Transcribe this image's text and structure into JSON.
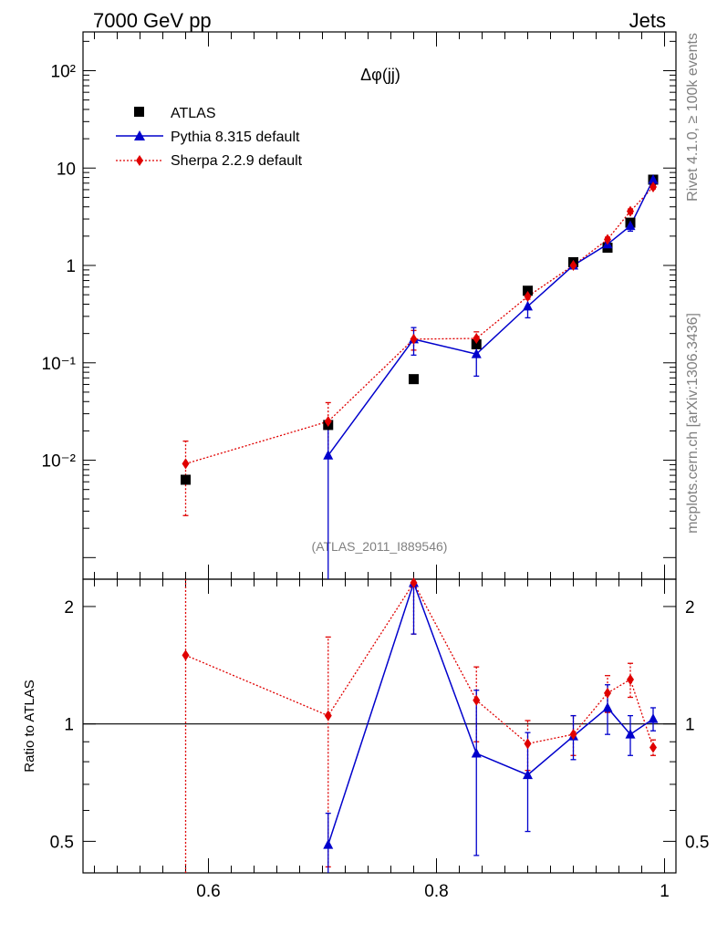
{
  "header": {
    "left": "7000 GeV pp",
    "right": "Jets"
  },
  "side_labels": {
    "top": "Rivet 4.1.0, ≥ 100k events",
    "bottom": "mcplots.cern.ch [arXiv:1306.3436]"
  },
  "analysis_tag": "(ATLAS_2011_I889546)",
  "colors": {
    "atlas": "#000000",
    "pythia": "#0000cc",
    "sherpa": "#e00000",
    "gray": "#808080"
  },
  "chart_data": [
    {
      "type": "scatter",
      "panel": "main",
      "title": "Δφ(jj)",
      "xlabel": "",
      "ylabel": "",
      "yscale": "log",
      "xlim": [
        0.49,
        1.01
      ],
      "ylim": [
        0.0006,
        250
      ],
      "y_tick_labels": [
        "10⁻²",
        "10⁻¹",
        "1",
        "10",
        "10²"
      ],
      "legend_position": "top-left",
      "series": [
        {
          "name": "ATLAS",
          "style": "markers",
          "x": [
            0.58,
            0.705,
            0.78,
            0.835,
            0.88,
            0.92,
            0.95,
            0.97,
            0.99
          ],
          "y": [
            0.0063,
            0.023,
            0.068,
            0.155,
            0.55,
            1.08,
            1.52,
            2.75,
            7.6
          ]
        },
        {
          "name": "Pythia 8.315 default",
          "style": "line-triangles",
          "x": [
            0.705,
            0.78,
            0.835,
            0.88,
            0.92,
            0.95,
            0.97,
            0.99
          ],
          "y": [
            0.0112,
            0.175,
            0.123,
            0.38,
            1.0,
            1.65,
            2.55,
            7.6
          ],
          "err_lo": [
            0.0112,
            0.055,
            0.05,
            0.09,
            0.06,
            0.08,
            0.3,
            0.4
          ],
          "err_hi": [
            0.0112,
            0.055,
            0.05,
            0.09,
            0.06,
            0.08,
            0.3,
            0.4
          ]
        },
        {
          "name": "Sherpa 2.2.9 default",
          "style": "dotted-diamonds",
          "x": [
            0.58,
            0.705,
            0.78,
            0.835,
            0.88,
            0.92,
            0.95,
            0.97,
            0.99
          ],
          "y": [
            0.0092,
            0.025,
            0.175,
            0.178,
            0.48,
            1.0,
            1.85,
            3.6,
            6.4
          ],
          "err_lo": [
            0.0065,
            0.014,
            0.04,
            0.03,
            0.03,
            0.04,
            0.1,
            0.2,
            0.3
          ],
          "err_hi": [
            0.0065,
            0.014,
            0.04,
            0.03,
            0.03,
            0.04,
            0.1,
            0.2,
            0.3
          ]
        }
      ]
    },
    {
      "type": "line",
      "panel": "ratio",
      "xlabel": "",
      "ylabel": "Ratio to ATLAS",
      "ylim": [
        0.415,
        2.35
      ],
      "yscale": "log",
      "x_tick_labels": [
        "0.6",
        "0.8",
        "1"
      ],
      "y_tick_labels": [
        "0.5",
        "1",
        "2"
      ],
      "reference_line": 1,
      "series": [
        {
          "name": "Pythia 8.315 default",
          "x": [
            0.705,
            0.78,
            0.835,
            0.88,
            0.92,
            0.95,
            0.97,
            0.99
          ],
          "y": [
            0.49,
            2.3,
            0.84,
            0.74,
            0.93,
            1.1,
            0.94,
            1.03
          ],
          "err_lo": [
            0.1,
            0.6,
            0.38,
            0.21,
            0.12,
            0.16,
            0.11,
            0.07
          ],
          "err_hi": [
            0.1,
            0.6,
            0.38,
            0.21,
            0.12,
            0.16,
            0.11,
            0.07
          ]
        },
        {
          "name": "Sherpa 2.2.9 default",
          "x": [
            0.58,
            0.705,
            0.78,
            0.835,
            0.88,
            0.92,
            0.95,
            0.97,
            0.99
          ],
          "y": [
            1.5,
            1.05,
            2.3,
            1.15,
            0.89,
            0.94,
            1.2,
            1.3,
            0.87
          ],
          "err_lo": [
            1.13,
            0.62,
            0.6,
            0.25,
            0.13,
            0.11,
            0.13,
            0.13,
            0.04
          ],
          "err_hi": [
            1.13,
            0.62,
            0.6,
            0.25,
            0.13,
            0.11,
            0.13,
            0.13,
            0.04
          ]
        }
      ]
    }
  ]
}
